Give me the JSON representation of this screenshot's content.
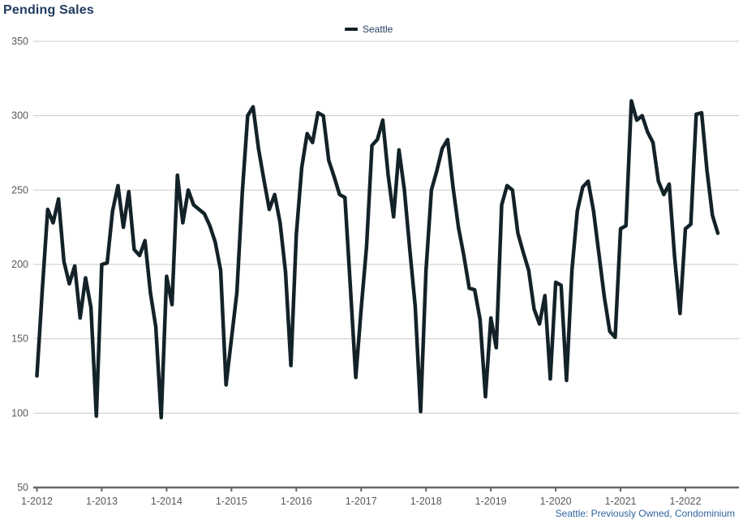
{
  "header": {
    "title": "Pending Sales"
  },
  "legend": {
    "series_label": "Seattle"
  },
  "footer": {
    "note": "Seattle: Previously Owned, Condominium"
  },
  "colors": {
    "title": "#1f3a5f",
    "line": "#132228",
    "gridline": "#c9c9c9",
    "axis": "#666666",
    "tick_label": "#595959",
    "footer": "#31659c",
    "background": "#ffffff"
  },
  "chart_data": {
    "type": "line",
    "title": "Pending Sales",
    "xlabel": "",
    "ylabel": "",
    "ylim": [
      50,
      350
    ],
    "y_ticks": [
      350,
      300,
      250,
      200,
      150,
      100,
      50
    ],
    "x_tick_labels": [
      "1-2012",
      "1-2013",
      "1-2014",
      "1-2015",
      "1-2016",
      "1-2017",
      "1-2018",
      "1-2019",
      "1-2020",
      "1-2021",
      "1-2022"
    ],
    "grid": "horizontal",
    "legend_position": "top-center",
    "series": [
      {
        "name": "Seattle",
        "color": "#132228",
        "start_month": "2012-01",
        "end_month": "2022-07",
        "points_per_year": 12,
        "values": [
          125,
          183,
          237,
          228,
          244,
          202,
          187,
          199,
          164,
          191,
          171,
          98,
          200,
          201,
          236,
          253,
          225,
          249,
          210,
          206,
          216,
          181,
          158,
          97,
          192,
          173,
          260,
          228,
          250,
          240,
          237,
          234,
          226,
          215,
          196,
          119,
          150,
          181,
          248,
          300,
          306,
          278,
          257,
          237,
          247,
          228,
          195,
          132,
          220,
          265,
          288,
          282,
          302,
          300,
          270,
          259,
          247,
          245,
          185,
          124,
          170,
          212,
          280,
          284,
          297,
          260,
          232,
          277,
          250,
          210,
          172,
          101,
          196,
          250,
          263,
          278,
          284,
          252,
          225,
          206,
          184,
          183,
          163,
          111,
          164,
          144,
          240,
          253,
          250,
          221,
          208,
          196,
          170,
          160,
          179,
          123,
          188,
          186,
          122,
          196,
          236,
          252,
          256,
          236,
          207,
          178,
          155,
          151,
          224,
          226,
          310,
          297,
          300,
          289,
          282,
          256,
          247,
          254,
          205,
          167,
          224,
          227,
          301,
          302,
          263,
          233,
          221
        ]
      }
    ]
  }
}
